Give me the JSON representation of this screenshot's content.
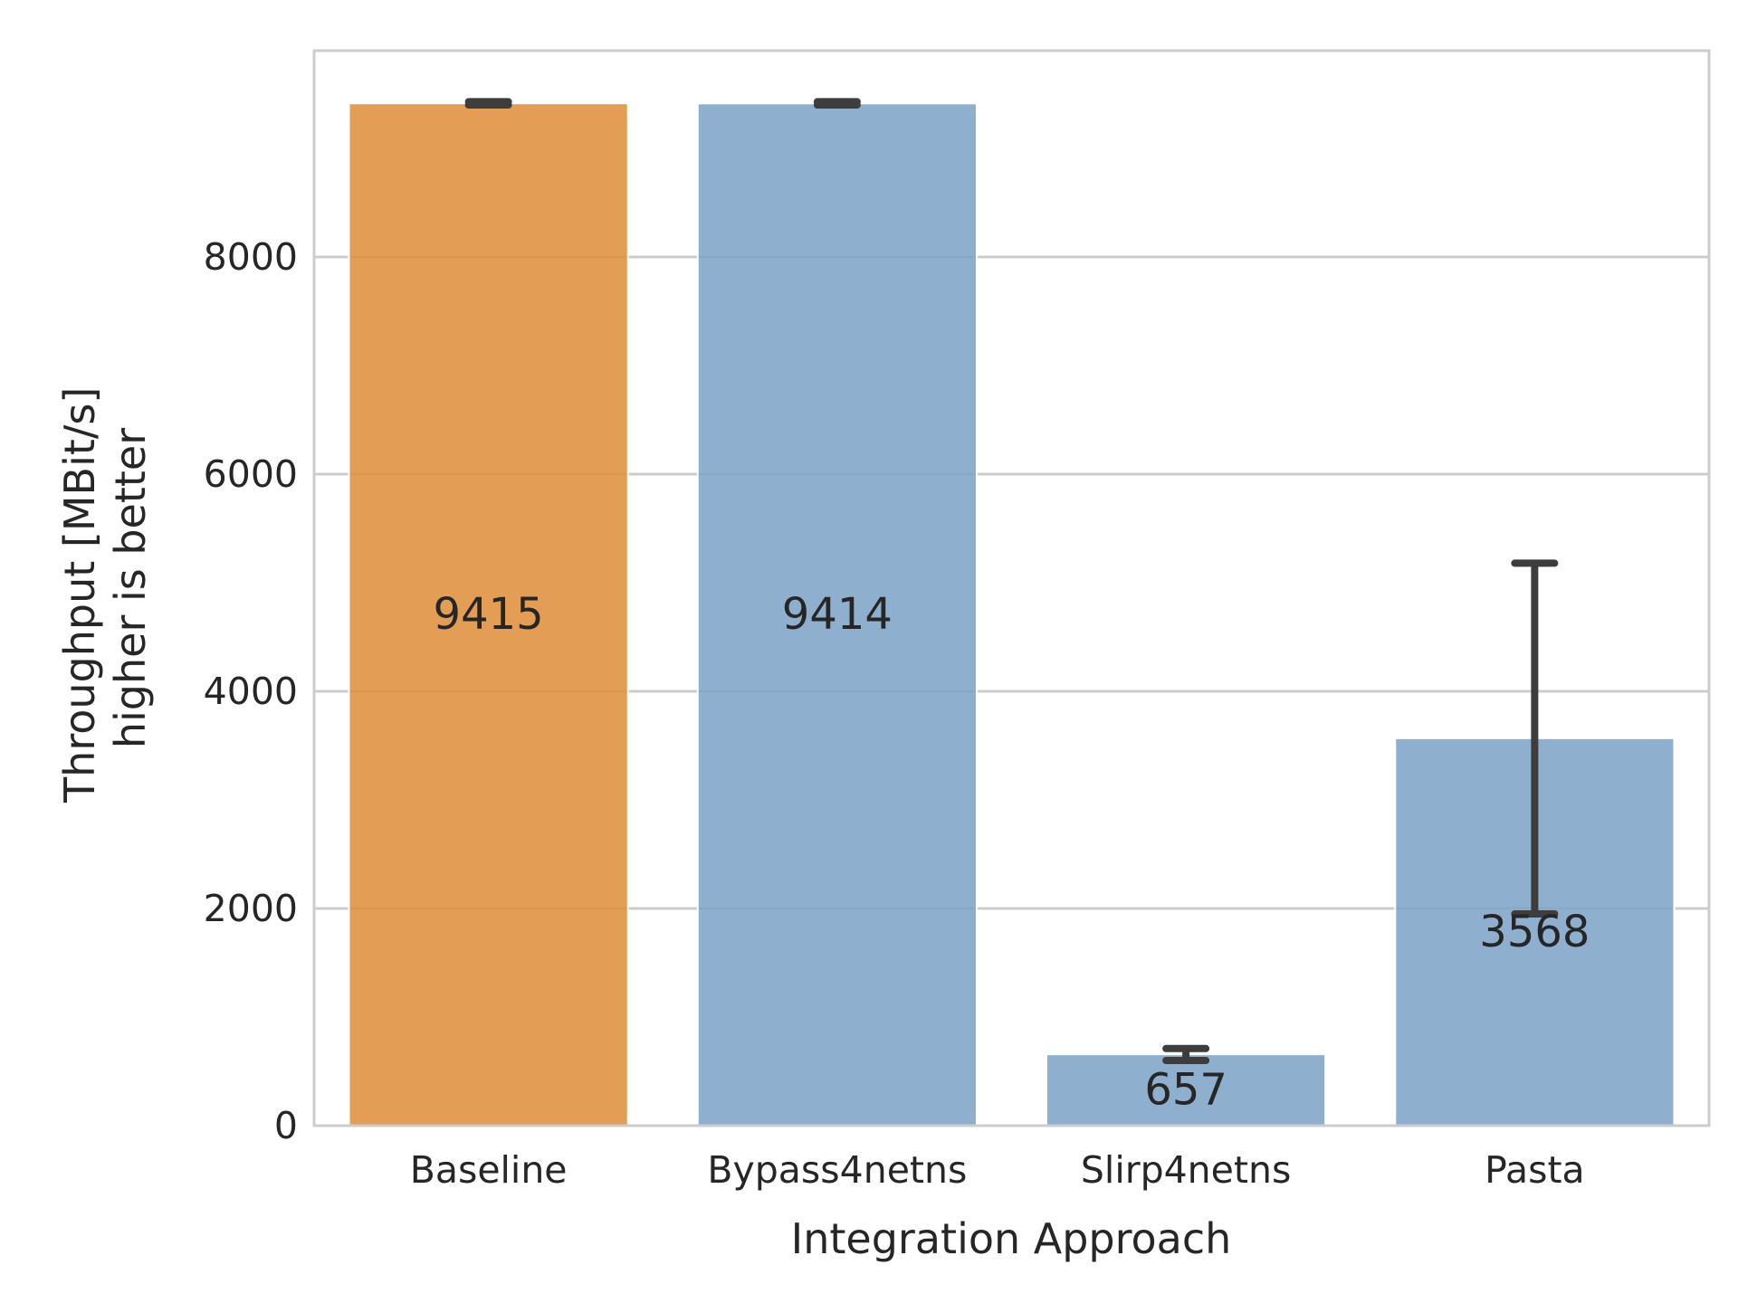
{
  "chart_data": {
    "type": "bar",
    "categories": [
      "Baseline",
      "Bypass4netns",
      "Slirp4netns",
      "Pasta"
    ],
    "values": [
      9415,
      9414,
      657,
      3568
    ],
    "value_labels": [
      "9415",
      "9414",
      "657",
      "3568"
    ],
    "error_bars": [
      {
        "low": 9400,
        "high": 9430
      },
      {
        "low": 9400,
        "high": 9430
      },
      {
        "low": 600,
        "high": 710
      },
      {
        "low": 1950,
        "high": 5180
      }
    ],
    "bar_colors": [
      "#e08f3c",
      "#7fa4c8",
      "#7fa4c8",
      "#7fa4c8"
    ],
    "error_bar_color": "#3d3d3d",
    "grid_color": "#cccccc",
    "grid": true,
    "xlabel": "Integration Approach",
    "ylabel_lines": [
      "Throughput  [MBit/s]",
      "higher is better"
    ],
    "ylim": [
      0,
      9900
    ],
    "yticks": [
      0,
      2000,
      4000,
      6000,
      8000
    ],
    "ytick_labels": [
      "0",
      "2000",
      "4000",
      "6000",
      "8000"
    ]
  }
}
